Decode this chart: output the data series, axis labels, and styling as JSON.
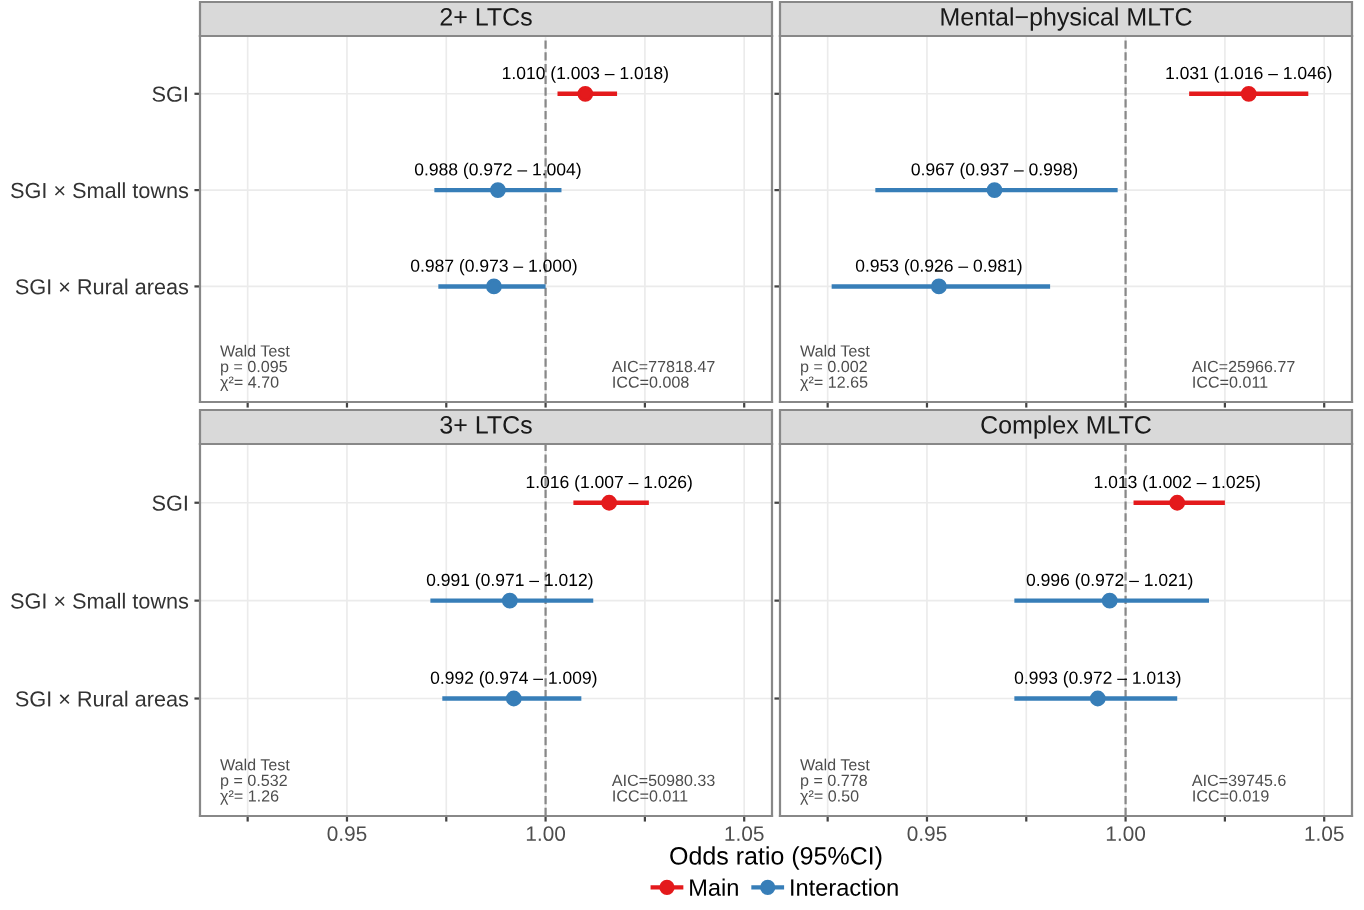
{
  "chart_data": [
    {
      "type": "scatter",
      "orientation": "horizontal",
      "title": "2+ LTCs",
      "legend": "bottom",
      "categories": [
        "SGI",
        "SGI × Small towns",
        "SGI × Rural areas"
      ],
      "xlim": [
        0.913,
        1.057
      ],
      "xticks": [
        {
          "value": 0.925,
          "label": null
        },
        {
          "value": 0.95,
          "label": null
        },
        {
          "value": 0.975,
          "label": null
        },
        {
          "value": 1.0,
          "label": null
        },
        {
          "value": 1.025,
          "label": null
        },
        {
          "value": 1.05,
          "label": null
        }
      ],
      "grid": true,
      "tick_labels": "y",
      "marker": "circle",
      "series": [
        {
          "name": "Main",
          "color": "#e41a1c",
          "values": [
            1.01,
            null,
            null
          ],
          "errors": [
            [
              1.003,
              1.018
            ],
            null,
            null
          ],
          "value_labels": [
            "1.010 (1.003 – 1.018)",
            null,
            null
          ]
        },
        {
          "name": "Interaction",
          "color": "#377eb8",
          "values": [
            null,
            0.988,
            0.987
          ],
          "errors": [
            null,
            [
              0.972,
              1.004
            ],
            [
              0.973,
              1.0
            ]
          ],
          "value_labels": [
            null,
            "0.988 (0.972 – 1.004)",
            "0.987 (0.973 – 1.000)"
          ]
        }
      ],
      "ref_lines": [
        {
          "axis": "x",
          "value": 1.0,
          "color": "#888888",
          "line_style": "dashed"
        }
      ],
      "annotations": [
        "Wald Test\np = 0.095\nχ²= 4.70",
        "AIC=77818.47\nICC=0.008"
      ]
    },
    {
      "type": "scatter",
      "orientation": "horizontal",
      "title": "Mental−physical MLTC",
      "categories": [
        null,
        null,
        null
      ],
      "xlim": [
        0.913,
        1.057
      ],
      "xticks": [
        {
          "value": 0.925,
          "label": null
        },
        {
          "value": 0.95,
          "label": null
        },
        {
          "value": 0.975,
          "label": null
        },
        {
          "value": 1.0,
          "label": null
        },
        {
          "value": 1.025,
          "label": null
        },
        {
          "value": 1.05,
          "label": null
        }
      ],
      "grid": true,
      "tick_labels": false,
      "marker": "circle",
      "series": [
        {
          "color": "#e41a1c",
          "values": [
            1.031,
            null,
            null
          ],
          "errors": [
            [
              1.016,
              1.046
            ],
            null,
            null
          ],
          "value_labels": [
            "1.031 (1.016 – 1.046)",
            null,
            null
          ]
        },
        {
          "color": "#377eb8",
          "values": [
            null,
            0.967,
            0.953
          ],
          "errors": [
            null,
            [
              0.937,
              0.998
            ],
            [
              0.926,
              0.981
            ]
          ],
          "value_labels": [
            null,
            "0.967 (0.937 – 0.998)",
            "0.953 (0.926 – 0.981)"
          ]
        }
      ],
      "ref_lines": [
        {
          "axis": "x",
          "value": 1.0,
          "color": "#888888",
          "line_style": "dashed"
        }
      ],
      "annotations": [
        "Wald Test\np = 0.002\nχ²= 12.65",
        "AIC=25966.77\nICC=0.011"
      ]
    },
    {
      "type": "scatter",
      "orientation": "horizontal",
      "title": "3+ LTCs",
      "xlabel": "Odds ratio (95%CI)",
      "categories": [
        "SGI",
        "SGI × Small towns",
        "SGI × Rural areas"
      ],
      "xlim": [
        0.913,
        1.057
      ],
      "xticks": [
        {
          "value": 0.925,
          "label": null
        },
        {
          "value": 0.95,
          "label": "0.95"
        },
        {
          "value": 0.975,
          "label": null
        },
        {
          "value": 1.0,
          "label": "1.00"
        },
        {
          "value": 1.025,
          "label": null
        },
        {
          "value": 1.05,
          "label": "1.05"
        }
      ],
      "grid": true,
      "marker": "circle",
      "series": [
        {
          "color": "#e41a1c",
          "values": [
            1.016,
            null,
            null
          ],
          "errors": [
            [
              1.007,
              1.026
            ],
            null,
            null
          ],
          "value_labels": [
            "1.016 (1.007 – 1.026)",
            null,
            null
          ]
        },
        {
          "color": "#377eb8",
          "values": [
            null,
            0.991,
            0.992
          ],
          "errors": [
            null,
            [
              0.971,
              1.012
            ],
            [
              0.974,
              1.009
            ]
          ],
          "value_labels": [
            null,
            "0.991 (0.971 – 1.012)",
            "0.992 (0.974 – 1.009)"
          ]
        }
      ],
      "ref_lines": [
        {
          "axis": "x",
          "value": 1.0,
          "color": "#888888",
          "line_style": "dashed"
        }
      ],
      "annotations": [
        "Wald Test\np = 0.532\nχ²= 1.26",
        "AIC=50980.33\nICC=0.011"
      ]
    },
    {
      "type": "scatter",
      "orientation": "horizontal",
      "title": "Complex MLTC",
      "categories": [
        null,
        null,
        null
      ],
      "xlim": [
        0.913,
        1.057
      ],
      "xticks": [
        {
          "value": 0.925,
          "label": null
        },
        {
          "value": 0.95,
          "label": "0.95"
        },
        {
          "value": 0.975,
          "label": null
        },
        {
          "value": 1.0,
          "label": "1.00"
        },
        {
          "value": 1.025,
          "label": null
        },
        {
          "value": 1.05,
          "label": "1.05"
        }
      ],
      "grid": true,
      "tick_labels": "x",
      "marker": "circle",
      "series": [
        {
          "color": "#e41a1c",
          "values": [
            1.013,
            null,
            null
          ],
          "errors": [
            [
              1.002,
              1.025
            ],
            null,
            null
          ],
          "value_labels": [
            "1.013 (1.002 – 1.025)",
            null,
            null
          ]
        },
        {
          "color": "#377eb8",
          "values": [
            null,
            0.996,
            0.993
          ],
          "errors": [
            null,
            [
              0.972,
              1.021
            ],
            [
              0.972,
              1.013
            ]
          ],
          "value_labels": [
            null,
            "0.996 (0.972 – 1.021)",
            "0.993 (0.972 – 1.013)"
          ]
        }
      ],
      "ref_lines": [
        {
          "axis": "x",
          "value": 1.0,
          "color": "#888888",
          "line_style": "dashed"
        }
      ],
      "annotations": [
        "Wald Test\np = 0.778\nχ²= 0.50",
        "AIC=39745.6\nICC=0.019"
      ]
    }
  ]
}
